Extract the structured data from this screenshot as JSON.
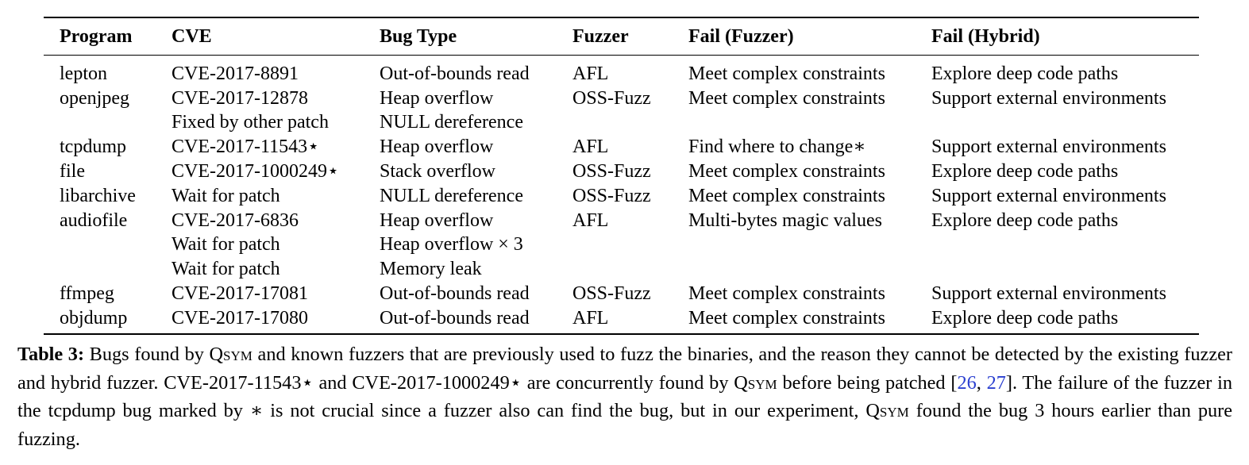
{
  "table": {
    "headers": [
      "Program",
      "CVE",
      "Bug Type",
      "Fuzzer",
      "Fail (Fuzzer)",
      "Fail (Hybrid)"
    ],
    "rows": [
      [
        "lepton",
        "CVE-2017-8891",
        "Out-of-bounds read",
        "AFL",
        "Meet complex constraints",
        "Explore deep code paths"
      ],
      [
        "openjpeg",
        "CVE-2017-12878",
        "Heap overflow",
        "OSS-Fuzz",
        "Meet complex constraints",
        "Support external environments"
      ],
      [
        "",
        "Fixed by other patch",
        "NULL dereference",
        "",
        "",
        ""
      ],
      [
        "tcpdump",
        "CVE-2017-11543⋆",
        "Heap overflow",
        "AFL",
        "Find where to change∗",
        "Support external environments"
      ],
      [
        "file",
        "CVE-2017-1000249⋆",
        "Stack overflow",
        "OSS-Fuzz",
        "Meet complex constraints",
        "Explore deep code paths"
      ],
      [
        "libarchive",
        "Wait for patch",
        "NULL dereference",
        "OSS-Fuzz",
        "Meet complex constraints",
        "Support external environments"
      ],
      [
        "audiofile",
        "CVE-2017-6836",
        "Heap overflow",
        "AFL",
        "Multi-bytes magic values",
        "Explore deep code paths"
      ],
      [
        "",
        "Wait for patch",
        "Heap overflow × 3",
        "",
        "",
        ""
      ],
      [
        "",
        "Wait for patch",
        "Memory leak",
        "",
        "",
        ""
      ],
      [
        "ffmpeg",
        "CVE-2017-17081",
        "Out-of-bounds read",
        "OSS-Fuzz",
        "Meet complex constraints",
        "Support external environments"
      ],
      [
        "objdump",
        "CVE-2017-17080",
        "Out-of-bounds read",
        "AFL",
        "Meet complex constraints",
        "Explore deep code paths"
      ]
    ]
  },
  "caption": {
    "label": "Table 3:",
    "part1": " Bugs found by ",
    "qsym1": "Qsym",
    "part2": " and known fuzzers that are previously used to fuzz the binaries, and the reason they cannot be detected by the existing fuzzer and hybrid fuzzer. CVE-2017-11543⋆ and CVE-2017-1000249⋆ are concurrently found by ",
    "qsym2": "Qsym",
    "part3": " before being patched [",
    "cite1": "26",
    "sep": ", ",
    "cite2": "27",
    "part4": "]. The failure of the fuzzer in the tcpdump bug marked by ∗ is not crucial since a fuzzer also can find the bug, but in our experiment, ",
    "qsym3": "Qsym",
    "part5": " found the bug 3 hours earlier than pure fuzzing."
  }
}
